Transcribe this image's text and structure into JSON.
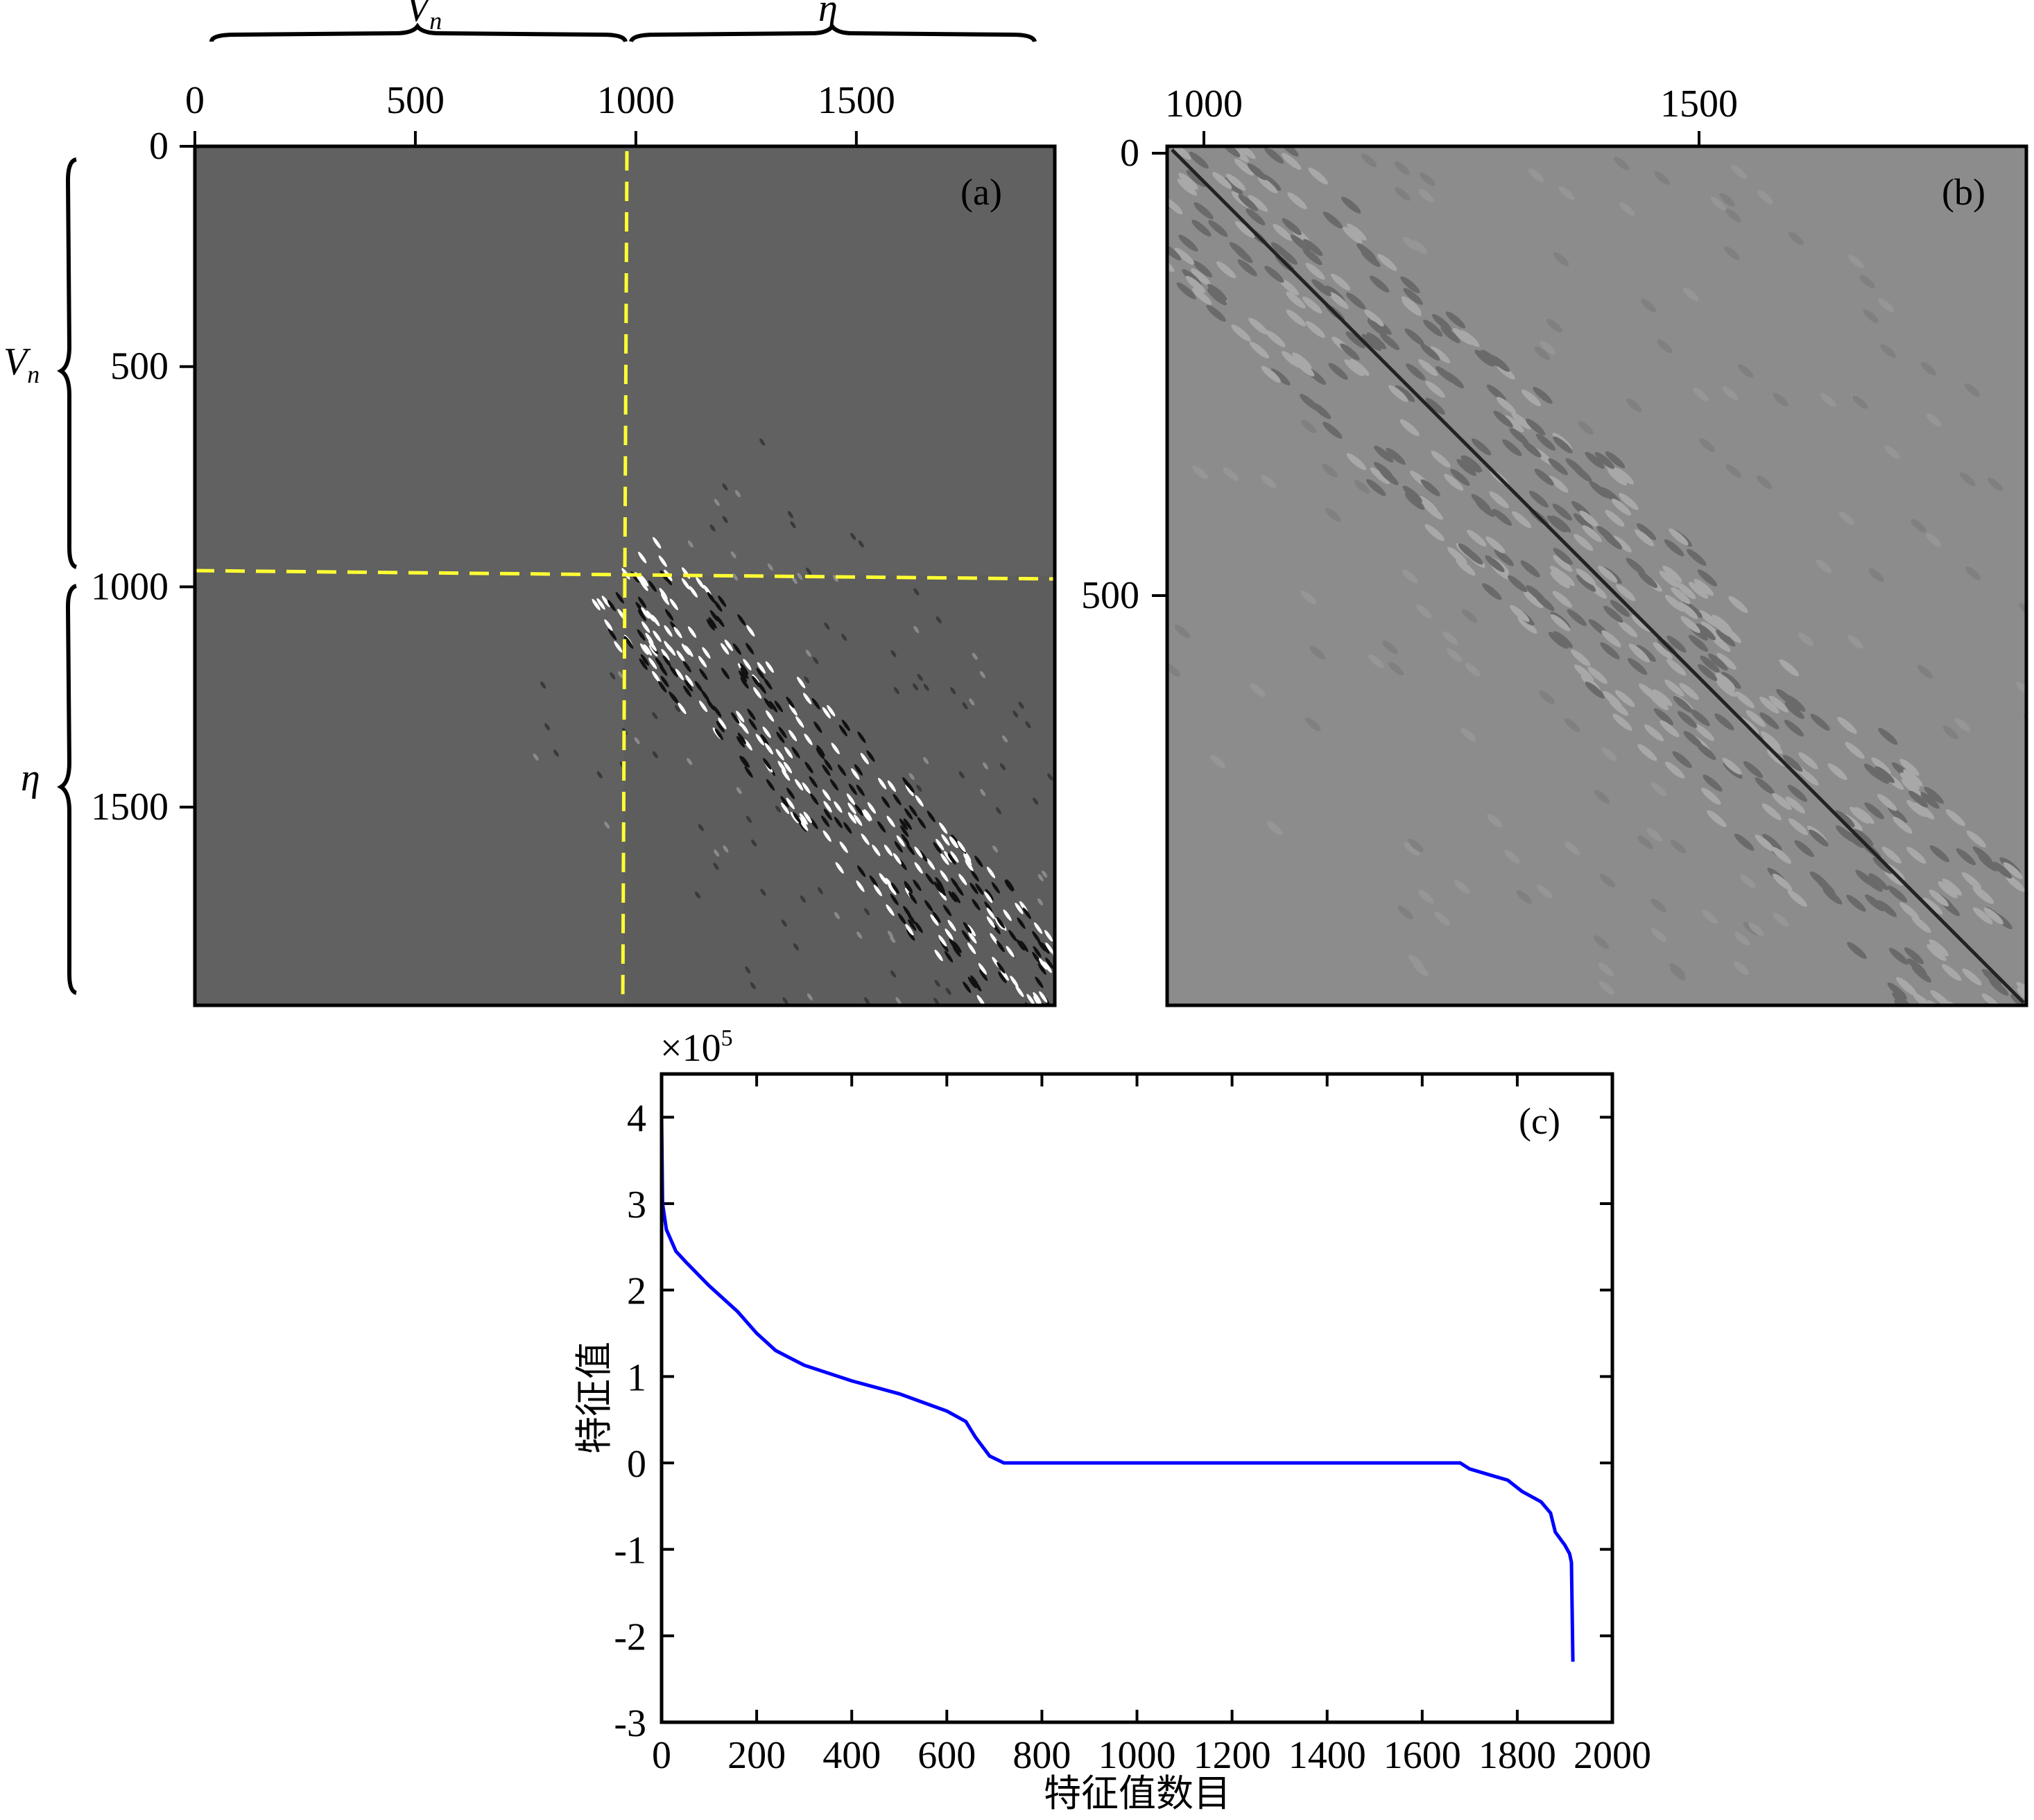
{
  "panels": {
    "a": {
      "label": "(a)",
      "x_ticks": [
        "0",
        "500",
        "1000",
        "1500"
      ],
      "y_ticks": [
        "0",
        "500",
        "1000",
        "1500"
      ],
      "x_tick_values": [
        0,
        500,
        1000,
        1500
      ],
      "y_tick_values": [
        0,
        500,
        1000,
        1500
      ],
      "axis_range": [
        0,
        1950
      ],
      "block_split": 970,
      "top_brace_labels": {
        "left_main": "V",
        "left_sub": "n",
        "right": "η"
      },
      "side_brace_labels": {
        "top_main": "V",
        "top_sub": "n",
        "bottom": "η"
      },
      "divider_color": "#ffff33",
      "background_color": "#616161"
    },
    "b": {
      "label": "(b)",
      "x_ticks": [
        "1000",
        "1500"
      ],
      "y_ticks": [
        "0",
        "500"
      ],
      "x_tick_values": [
        1000,
        1500
      ],
      "y_tick_values": [
        0,
        500
      ],
      "background_color": "#8c8c8c"
    }
  },
  "chart_data": {
    "type": "line",
    "title": "",
    "label": "(c)",
    "xlabel": "特征值数目",
    "ylabel": "特征值",
    "y_multiplier": "×10",
    "y_multiplier_exp": "5",
    "xlim": [
      0,
      2000
    ],
    "ylim": [
      -3,
      4.5
    ],
    "x_ticks": [
      0,
      200,
      400,
      600,
      800,
      1000,
      1200,
      1400,
      1600,
      1800,
      2000
    ],
    "y_ticks": [
      4,
      3,
      2,
      1,
      0,
      -1,
      -2,
      -3
    ],
    "grid": false,
    "series": [
      {
        "name": "eigenvalues",
        "color": "#0000ff",
        "x": [
          0,
          2,
          10,
          30,
          50,
          100,
          160,
          200,
          240,
          300,
          400,
          500,
          600,
          640,
          660,
          690,
          720,
          1000,
          1400,
          1680,
          1700,
          1780,
          1810,
          1850,
          1870,
          1880,
          1900,
          1910,
          1914,
          1917
        ],
        "y": [
          4.0,
          3.0,
          2.7,
          2.45,
          2.33,
          2.05,
          1.75,
          1.5,
          1.3,
          1.13,
          0.95,
          0.8,
          0.6,
          0.48,
          0.3,
          0.08,
          0.0,
          0.0,
          0.0,
          0.0,
          -0.07,
          -0.2,
          -0.33,
          -0.45,
          -0.58,
          -0.8,
          -0.95,
          -1.05,
          -1.15,
          -2.3
        ]
      }
    ]
  }
}
